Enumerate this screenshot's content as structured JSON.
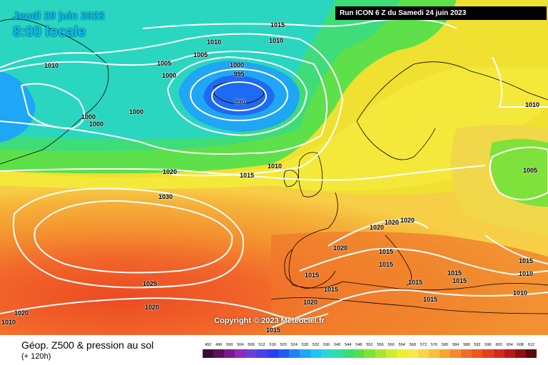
{
  "header": {
    "date": "Jeudi 29 juin 2023",
    "time": "8:00 locale",
    "run": "Run ICON 6 Z du Samedi 24 juin 2023"
  },
  "copyright": "Copyright © 2023 Meteociel.fr",
  "footer": {
    "title": "Géop. Z500 & pression au sol",
    "subtitle": "(+ 120h)"
  },
  "isobar_labels": [
    {
      "text": "1015"
    },
    {
      "text": "1010"
    },
    {
      "text": "1010"
    },
    {
      "text": "1010"
    },
    {
      "text": "1005"
    },
    {
      "text": "1005"
    },
    {
      "text": "1000"
    },
    {
      "text": "1000"
    },
    {
      "text": "995"
    },
    {
      "text": "990"
    },
    {
      "text": "1000"
    },
    {
      "text": "1000"
    },
    {
      "text": "1000"
    },
    {
      "text": "1010"
    },
    {
      "text": "1020"
    },
    {
      "text": "1015"
    },
    {
      "text": "1010"
    },
    {
      "text": "1005"
    },
    {
      "text": "1030"
    },
    {
      "text": "1020"
    },
    {
      "text": "1020"
    },
    {
      "text": "1020"
    },
    {
      "text": "1020"
    },
    {
      "text": "1015"
    },
    {
      "text": "1015"
    },
    {
      "text": "1015"
    },
    {
      "text": "1015"
    },
    {
      "text": "1015"
    },
    {
      "text": "1015"
    },
    {
      "text": "1010"
    },
    {
      "text": "1010"
    },
    {
      "text": "1025"
    },
    {
      "text": "1020"
    },
    {
      "text": "1020"
    },
    {
      "text": "1020"
    },
    {
      "text": "1015"
    },
    {
      "text": "1015"
    },
    {
      "text": "1015"
    },
    {
      "text": "1015"
    },
    {
      "text": "1010"
    }
  ],
  "scale": {
    "ticks": [
      "492",
      "496",
      "500",
      "504",
      "508",
      "512",
      "516",
      "520",
      "524",
      "528",
      "532",
      "536",
      "540",
      "544",
      "548",
      "552",
      "556",
      "560",
      "564",
      "568",
      "572",
      "576",
      "580",
      "584",
      "588",
      "592",
      "596",
      "600",
      "604",
      "608",
      "612"
    ],
    "colors": [
      "#3a0a3a",
      "#5a1060",
      "#7a1a8a",
      "#8e2ab8",
      "#6b3fd6",
      "#4a40e6",
      "#2a3ff0",
      "#1f5cf2",
      "#1f82f5",
      "#1ea6f7",
      "#20c3f2",
      "#2ad6d6",
      "#30dca8",
      "#38dc78",
      "#52e04a",
      "#7ee23a",
      "#a8e630",
      "#cdec2e",
      "#eef02c",
      "#f8e64a",
      "#f7d44a",
      "#f6bf3c",
      "#f5a534",
      "#f38a2e",
      "#f06f28",
      "#ec5522",
      "#e43e1e",
      "#d42a1c",
      "#b81a1a",
      "#8e1010",
      "#5e0808"
    ]
  }
}
